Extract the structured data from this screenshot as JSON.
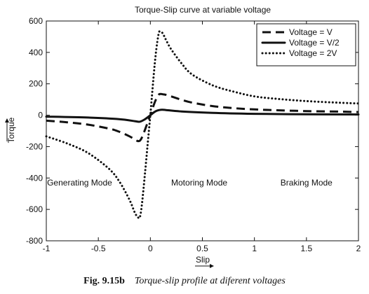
{
  "chart_data": {
    "type": "line",
    "title": "Torque-Slip curve at variable voltage",
    "xlabel": "Slip",
    "ylabel": "Torque",
    "xlim": [
      -1,
      2
    ],
    "ylim": [
      -800,
      600
    ],
    "xticks": [
      -1,
      -0.5,
      0,
      0.5,
      1,
      1.5,
      2
    ],
    "yticks": [
      -800,
      -600,
      -400,
      -200,
      0,
      200,
      400,
      600
    ],
    "xtick_labels": [
      "-1",
      "-0.5",
      "0",
      "0.5",
      "1",
      "1.5",
      "2"
    ],
    "ytick_labels": [
      "-800",
      "-600",
      "-400",
      "-200",
      "0",
      "200",
      "400",
      "600"
    ],
    "grid": false,
    "legend_position": "top-right",
    "series": [
      {
        "name": "Voltage = V",
        "line_style": "dashed",
        "x": [
          -1,
          -0.8,
          -0.6,
          -0.4,
          -0.3,
          -0.2,
          -0.15,
          -0.12,
          -0.1,
          -0.08,
          -0.05,
          -0.02,
          0,
          0.02,
          0.05,
          0.08,
          0.1,
          0.12,
          0.15,
          0.2,
          0.3,
          0.4,
          0.6,
          0.8,
          1,
          1.2,
          1.5,
          1.8,
          2
        ],
        "y": [
          -35,
          -45,
          -60,
          -85,
          -105,
          -135,
          -155,
          -165,
          -162,
          -140,
          -90,
          -35,
          0,
          40,
          95,
          130,
          135,
          133,
          130,
          120,
          98,
          80,
          58,
          45,
          37,
          32,
          26,
          23,
          20
        ]
      },
      {
        "name": "Voltage = V/2",
        "line_style": "solid",
        "x": [
          -1,
          -0.6,
          -0.3,
          -0.15,
          -0.1,
          -0.05,
          0,
          0.05,
          0.1,
          0.15,
          0.3,
          0.6,
          1,
          1.5,
          2
        ],
        "y": [
          -9,
          -15,
          -25,
          -38,
          -41,
          -25,
          0,
          25,
          34,
          33,
          24,
          15,
          9,
          6,
          5
        ]
      },
      {
        "name": "Voltage = 2V",
        "line_style": "dotted",
        "x": [
          -1,
          -0.8,
          -0.6,
          -0.4,
          -0.3,
          -0.2,
          -0.15,
          -0.12,
          -0.1,
          -0.08,
          -0.05,
          -0.02,
          0,
          0.02,
          0.05,
          0.08,
          0.1,
          0.12,
          0.15,
          0.2,
          0.3,
          0.4,
          0.6,
          0.8,
          1,
          1.2,
          1.5,
          1.8,
          2
        ],
        "y": [
          -135,
          -180,
          -240,
          -340,
          -420,
          -540,
          -620,
          -650,
          -648,
          -560,
          -360,
          -140,
          0,
          160,
          380,
          520,
          530,
          520,
          480,
          420,
          330,
          260,
          190,
          150,
          120,
          105,
          90,
          80,
          75
        ]
      }
    ],
    "annotations": [
      {
        "text": "Generating Mode",
        "x": -0.68,
        "y": -430
      },
      {
        "text": "Motoring Mode",
        "x": 0.47,
        "y": -430
      },
      {
        "text": "Braking Mode",
        "x": 1.5,
        "y": -430
      }
    ]
  },
  "caption": {
    "figure_number": "Fig. 9.15b",
    "text": "Torque-slip profile at diferent voltages"
  }
}
